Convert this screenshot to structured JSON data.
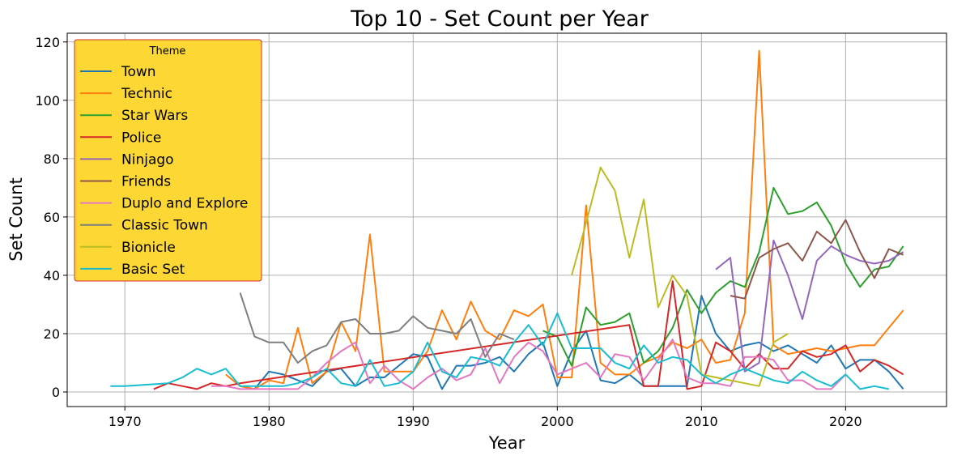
{
  "chart_data": {
    "type": "line",
    "title": "Top 10 - Set Count per Year",
    "xlabel": "Year",
    "ylabel": "Set Count",
    "xlim": [
      1966,
      2027
    ],
    "ylim": [
      -5,
      123
    ],
    "xticks": [
      1970,
      1980,
      1990,
      2000,
      2010,
      2020
    ],
    "yticks": [
      0,
      20,
      40,
      60,
      80,
      100,
      120
    ],
    "grid": true,
    "legend": {
      "title": "Theme",
      "placement": "upper-left",
      "background": "#fdd835",
      "border": "#d32f2f"
    },
    "series": [
      {
        "name": "Town",
        "color": "#1f77b4",
        "points": [
          [
            1978,
            2
          ],
          [
            1979,
            1
          ],
          [
            1980,
            7
          ],
          [
            1981,
            6
          ],
          [
            1982,
            4
          ],
          [
            1983,
            2
          ],
          [
            1984,
            7
          ],
          [
            1985,
            8
          ],
          [
            1986,
            2
          ],
          [
            1987,
            5
          ],
          [
            1988,
            5
          ],
          [
            1989,
            9
          ],
          [
            1990,
            13
          ],
          [
            1991,
            12
          ],
          [
            1992,
            1
          ],
          [
            1993,
            9
          ],
          [
            1994,
            9
          ],
          [
            1995,
            10
          ],
          [
            1996,
            12
          ],
          [
            1997,
            7
          ],
          [
            1998,
            13
          ],
          [
            1999,
            17
          ],
          [
            2000,
            2
          ],
          [
            2001,
            14
          ],
          [
            2002,
            21
          ],
          [
            2003,
            4
          ],
          [
            2004,
            3
          ],
          [
            2005,
            6
          ],
          [
            2006,
            2
          ],
          [
            2007,
            2
          ],
          [
            2008,
            2
          ],
          [
            2009,
            2
          ],
          [
            2010,
            33
          ],
          [
            2011,
            20
          ],
          [
            2012,
            14
          ],
          [
            2013,
            16
          ],
          [
            2014,
            17
          ],
          [
            2015,
            14
          ],
          [
            2016,
            16
          ],
          [
            2017,
            13
          ],
          [
            2018,
            10
          ],
          [
            2019,
            16
          ],
          [
            2020,
            8
          ],
          [
            2021,
            11
          ],
          [
            2022,
            11
          ],
          [
            2023,
            7
          ],
          [
            2024,
            1
          ]
        ]
      },
      {
        "name": "Technic",
        "color": "#ff7f0e",
        "points": [
          [
            1977,
            6
          ],
          [
            1978,
            2
          ],
          [
            1979,
            1
          ],
          [
            1980,
            4
          ],
          [
            1981,
            3
          ],
          [
            1982,
            22
          ],
          [
            1983,
            3
          ],
          [
            1984,
            7
          ],
          [
            1985,
            24
          ],
          [
            1986,
            14
          ],
          [
            1987,
            54
          ],
          [
            1988,
            7
          ],
          [
            1989,
            7
          ],
          [
            1990,
            7
          ],
          [
            1991,
            14
          ],
          [
            1992,
            28
          ],
          [
            1993,
            18
          ],
          [
            1994,
            31
          ],
          [
            1995,
            21
          ],
          [
            1996,
            18
          ],
          [
            1997,
            28
          ],
          [
            1998,
            26
          ],
          [
            1999,
            30
          ],
          [
            2000,
            5
          ],
          [
            2001,
            5
          ],
          [
            2002,
            64
          ],
          [
            2003,
            10
          ],
          [
            2004,
            6
          ],
          [
            2005,
            6
          ],
          [
            2006,
            10
          ],
          [
            2007,
            12
          ],
          [
            2008,
            17
          ],
          [
            2009,
            15
          ],
          [
            2010,
            18
          ],
          [
            2011,
            10
          ],
          [
            2012,
            11
          ],
          [
            2013,
            27
          ],
          [
            2014,
            117
          ],
          [
            2015,
            16
          ],
          [
            2016,
            13
          ],
          [
            2017,
            14
          ],
          [
            2018,
            15
          ],
          [
            2019,
            14
          ],
          [
            2020,
            15
          ],
          [
            2021,
            16
          ],
          [
            2022,
            16
          ],
          [
            2023,
            22
          ],
          [
            2024,
            28
          ]
        ]
      },
      {
        "name": "Star Wars",
        "color": "#2ca02c",
        "points": [
          [
            1999,
            21
          ],
          [
            2000,
            19
          ],
          [
            2001,
            9
          ],
          [
            2002,
            29
          ],
          [
            2003,
            23
          ],
          [
            2004,
            24
          ],
          [
            2005,
            27
          ],
          [
            2006,
            10
          ],
          [
            2007,
            14
          ],
          [
            2008,
            22
          ],
          [
            2009,
            35
          ],
          [
            2010,
            27
          ],
          [
            2011,
            34
          ],
          [
            2012,
            38
          ],
          [
            2013,
            36
          ],
          [
            2014,
            48
          ],
          [
            2015,
            70
          ],
          [
            2016,
            61
          ],
          [
            2017,
            62
          ],
          [
            2018,
            65
          ],
          [
            2019,
            57
          ],
          [
            2020,
            44
          ],
          [
            2021,
            36
          ],
          [
            2022,
            42
          ],
          [
            2023,
            43
          ],
          [
            2024,
            50
          ]
        ]
      },
      {
        "name": "Police",
        "color": "#d62728",
        "points": [
          [
            1972,
            1
          ],
          [
            1973,
            3
          ],
          [
            1974,
            2
          ],
          [
            1975,
            1
          ],
          [
            1976,
            3
          ],
          [
            1977,
            2
          ],
          [
            1978,
            3
          ],
          [
            2005,
            23
          ],
          [
            2006,
            2
          ],
          [
            2007,
            2
          ],
          [
            2008,
            38
          ],
          [
            2009,
            1
          ],
          [
            2010,
            2
          ],
          [
            2011,
            17
          ],
          [
            2012,
            14
          ],
          [
            2013,
            8
          ],
          [
            2014,
            13
          ],
          [
            2015,
            8
          ],
          [
            2016,
            8
          ],
          [
            2017,
            14
          ],
          [
            2018,
            12
          ],
          [
            2019,
            13
          ],
          [
            2020,
            16
          ],
          [
            2021,
            7
          ],
          [
            2022,
            11
          ],
          [
            2023,
            9
          ],
          [
            2024,
            6
          ]
        ]
      },
      {
        "name": "Ninjago",
        "color": "#9467bd",
        "points": [
          [
            2011,
            42
          ],
          [
            2012,
            46
          ],
          [
            2013,
            7
          ],
          [
            2014,
            10
          ],
          [
            2015,
            52
          ],
          [
            2016,
            40
          ],
          [
            2017,
            25
          ],
          [
            2018,
            45
          ],
          [
            2019,
            50
          ],
          [
            2020,
            47
          ],
          [
            2021,
            45
          ],
          [
            2022,
            44
          ],
          [
            2023,
            45
          ],
          [
            2024,
            48
          ]
        ]
      },
      {
        "name": "Friends",
        "color": "#8c564b",
        "points": [
          [
            2012,
            33
          ],
          [
            2013,
            32
          ],
          [
            2014,
            46
          ],
          [
            2015,
            49
          ],
          [
            2016,
            51
          ],
          [
            2017,
            45
          ],
          [
            2018,
            55
          ],
          [
            2019,
            51
          ],
          [
            2020,
            59
          ],
          [
            2021,
            48
          ],
          [
            2022,
            39
          ],
          [
            2023,
            49
          ],
          [
            2024,
            47
          ]
        ]
      },
      {
        "name": "Duplo and Explore",
        "color": "#e377c2",
        "points": [
          [
            1976,
            2
          ],
          [
            1977,
            2
          ],
          [
            1978,
            1
          ],
          [
            1979,
            1
          ],
          [
            1980,
            1
          ],
          [
            1981,
            1
          ],
          [
            1982,
            1
          ],
          [
            1983,
            5
          ],
          [
            1984,
            10
          ],
          [
            1985,
            14
          ],
          [
            1986,
            17
          ],
          [
            1987,
            3
          ],
          [
            1988,
            9
          ],
          [
            1989,
            4
          ],
          [
            1990,
            1
          ],
          [
            1991,
            5
          ],
          [
            1992,
            8
          ],
          [
            1993,
            4
          ],
          [
            1994,
            6
          ],
          [
            1995,
            15
          ],
          [
            1996,
            3
          ],
          [
            1997,
            12
          ],
          [
            1998,
            17
          ],
          [
            1999,
            14
          ],
          [
            2000,
            6
          ],
          [
            2001,
            8
          ],
          [
            2002,
            10
          ],
          [
            2003,
            5
          ],
          [
            2004,
            13
          ],
          [
            2005,
            12
          ],
          [
            2006,
            4
          ],
          [
            2007,
            11
          ],
          [
            2008,
            18
          ],
          [
            2009,
            5
          ],
          [
            2010,
            3
          ],
          [
            2011,
            3
          ],
          [
            2012,
            2
          ],
          [
            2013,
            12
          ],
          [
            2014,
            12
          ],
          [
            2015,
            11
          ],
          [
            2016,
            4
          ],
          [
            2017,
            4
          ],
          [
            2018,
            1
          ],
          [
            2019,
            1
          ],
          [
            2020,
            6
          ]
        ]
      },
      {
        "name": "Classic Town",
        "color": "#7f7f7f",
        "points": [
          [
            1978,
            34
          ],
          [
            1979,
            19
          ],
          [
            1980,
            17
          ],
          [
            1981,
            17
          ],
          [
            1982,
            10
          ],
          [
            1983,
            14
          ],
          [
            1984,
            16
          ],
          [
            1985,
            24
          ],
          [
            1986,
            25
          ],
          [
            1987,
            20
          ],
          [
            1988,
            20
          ],
          [
            1989,
            21
          ],
          [
            1990,
            26
          ],
          [
            1991,
            22
          ],
          [
            1992,
            21
          ],
          [
            1993,
            20
          ],
          [
            1994,
            25
          ],
          [
            1995,
            12
          ],
          [
            1996,
            20
          ],
          [
            1997,
            18
          ]
        ]
      },
      {
        "name": "Bionicle",
        "color": "#bcbd22",
        "points": [
          [
            2001,
            40
          ],
          [
            2002,
            58
          ],
          [
            2003,
            77
          ],
          [
            2004,
            69
          ],
          [
            2005,
            46
          ],
          [
            2006,
            66
          ],
          [
            2007,
            29
          ],
          [
            2008,
            40
          ],
          [
            2009,
            33
          ],
          [
            2010,
            6
          ],
          [
            2011,
            5
          ],
          [
            2012,
            4
          ],
          [
            2013,
            3
          ],
          [
            2014,
            2
          ],
          [
            2015,
            17
          ],
          [
            2016,
            20
          ]
        ]
      },
      {
        "name": "Basic Set",
        "color": "#17becf",
        "points": [
          [
            1969,
            2
          ],
          [
            1970,
            2
          ],
          [
            1973,
            3
          ],
          [
            1974,
            5
          ],
          [
            1975,
            8
          ],
          [
            1976,
            6
          ],
          [
            1977,
            8
          ],
          [
            1978,
            2
          ],
          [
            1979,
            2
          ],
          [
            1980,
            2
          ],
          [
            1981,
            2
          ],
          [
            1982,
            3
          ],
          [
            1983,
            5
          ],
          [
            1984,
            8
          ],
          [
            1985,
            3
          ],
          [
            1986,
            2
          ],
          [
            1987,
            11
          ],
          [
            1988,
            2
          ],
          [
            1989,
            3
          ],
          [
            1990,
            7
          ],
          [
            1991,
            17
          ],
          [
            1992,
            7
          ],
          [
            1993,
            5
          ],
          [
            1994,
            12
          ],
          [
            1995,
            11
          ],
          [
            1996,
            9
          ],
          [
            1997,
            17
          ],
          [
            1998,
            23
          ],
          [
            1999,
            16
          ],
          [
            2000,
            27
          ],
          [
            2001,
            15
          ],
          [
            2002,
            15
          ],
          [
            2003,
            15
          ],
          [
            2004,
            10
          ],
          [
            2005,
            8
          ],
          [
            2006,
            16
          ],
          [
            2007,
            10
          ],
          [
            2008,
            12
          ],
          [
            2009,
            11
          ],
          [
            2010,
            6
          ],
          [
            2011,
            3
          ],
          [
            2012,
            6
          ],
          [
            2013,
            8
          ],
          [
            2014,
            6
          ],
          [
            2015,
            4
          ],
          [
            2016,
            3
          ],
          [
            2017,
            7
          ],
          [
            2018,
            4
          ],
          [
            2019,
            2
          ],
          [
            2020,
            6
          ],
          [
            2021,
            1
          ],
          [
            2022,
            2
          ],
          [
            2023,
            1
          ]
        ]
      }
    ]
  }
}
